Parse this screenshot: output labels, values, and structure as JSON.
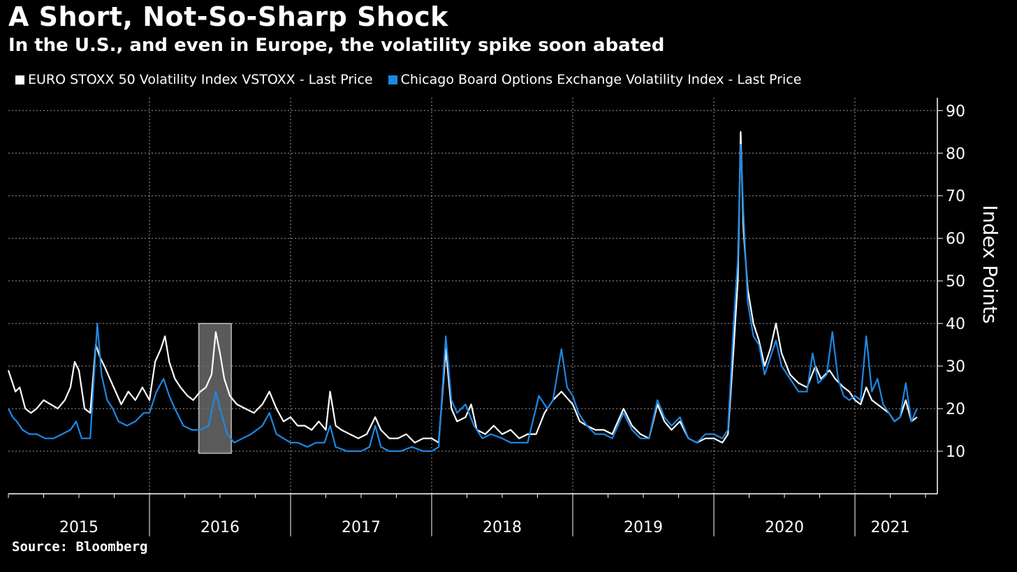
{
  "chart_data": {
    "type": "line",
    "title": "A Short, Not-So-Sharp Shock",
    "subtitle": "In the U.S., and even in Europe, the volatility spike soon abated",
    "ylabel": "Index Points",
    "xlabel": "",
    "source": "Source: Bloomberg",
    "ylim": [
      0,
      93
    ],
    "yticks": [
      10,
      20,
      30,
      40,
      50,
      60,
      70,
      80,
      90
    ],
    "x_range": [
      2015.0,
      2021.5
    ],
    "year_labels": [
      "2015",
      "2016",
      "2017",
      "2018",
      "2019",
      "2020",
      "2021"
    ],
    "highlight": {
      "x0": 2016.35,
      "x1": 2016.58,
      "y0": 9.5,
      "y1": 40,
      "label": ""
    },
    "series": [
      {
        "name": "EURO STOXX 50 Volatility Index VSTOXX - Last Price",
        "color": "#ffffff",
        "points": [
          [
            2015.0,
            29
          ],
          [
            2015.02,
            27
          ],
          [
            2015.05,
            24
          ],
          [
            2015.08,
            25
          ],
          [
            2015.12,
            20
          ],
          [
            2015.16,
            19
          ],
          [
            2015.2,
            20
          ],
          [
            2015.25,
            22
          ],
          [
            2015.3,
            21
          ],
          [
            2015.35,
            20
          ],
          [
            2015.4,
            22
          ],
          [
            2015.44,
            25
          ],
          [
            2015.47,
            31
          ],
          [
            2015.5,
            29
          ],
          [
            2015.54,
            20
          ],
          [
            2015.58,
            19
          ],
          [
            2015.62,
            35
          ],
          [
            2015.65,
            32
          ],
          [
            2015.68,
            30
          ],
          [
            2015.72,
            27
          ],
          [
            2015.76,
            24
          ],
          [
            2015.8,
            21
          ],
          [
            2015.85,
            24
          ],
          [
            2015.9,
            22
          ],
          [
            2015.95,
            25
          ],
          [
            2016.0,
            22
          ],
          [
            2016.04,
            31
          ],
          [
            2016.08,
            34
          ],
          [
            2016.11,
            37
          ],
          [
            2016.14,
            31
          ],
          [
            2016.18,
            27
          ],
          [
            2016.22,
            25
          ],
          [
            2016.27,
            23
          ],
          [
            2016.31,
            22
          ],
          [
            2016.36,
            24
          ],
          [
            2016.4,
            25
          ],
          [
            2016.44,
            28
          ],
          [
            2016.47,
            38
          ],
          [
            2016.5,
            33
          ],
          [
            2016.53,
            27
          ],
          [
            2016.57,
            23
          ],
          [
            2016.62,
            21
          ],
          [
            2016.68,
            20
          ],
          [
            2016.74,
            19
          ],
          [
            2016.8,
            21
          ],
          [
            2016.85,
            24
          ],
          [
            2016.9,
            20
          ],
          [
            2016.95,
            17
          ],
          [
            2017.0,
            18
          ],
          [
            2017.05,
            16
          ],
          [
            2017.1,
            16
          ],
          [
            2017.15,
            15
          ],
          [
            2017.2,
            17
          ],
          [
            2017.25,
            15
          ],
          [
            2017.28,
            24
          ],
          [
            2017.32,
            16
          ],
          [
            2017.36,
            15
          ],
          [
            2017.42,
            14
          ],
          [
            2017.48,
            13
          ],
          [
            2017.54,
            14
          ],
          [
            2017.6,
            18
          ],
          [
            2017.64,
            15
          ],
          [
            2017.7,
            13
          ],
          [
            2017.76,
            13
          ],
          [
            2017.82,
            14
          ],
          [
            2017.88,
            12
          ],
          [
            2017.94,
            13
          ],
          [
            2018.0,
            13
          ],
          [
            2018.05,
            12
          ],
          [
            2018.1,
            34
          ],
          [
            2018.14,
            20
          ],
          [
            2018.18,
            17
          ],
          [
            2018.24,
            18
          ],
          [
            2018.28,
            21
          ],
          [
            2018.32,
            15
          ],
          [
            2018.38,
            14
          ],
          [
            2018.44,
            16
          ],
          [
            2018.5,
            14
          ],
          [
            2018.56,
            15
          ],
          [
            2018.62,
            13
          ],
          [
            2018.68,
            14
          ],
          [
            2018.74,
            14
          ],
          [
            2018.8,
            19
          ],
          [
            2018.86,
            22
          ],
          [
            2018.92,
            24
          ],
          [
            2019.0,
            21
          ],
          [
            2019.05,
            17
          ],
          [
            2019.1,
            16
          ],
          [
            2019.16,
            15
          ],
          [
            2019.22,
            15
          ],
          [
            2019.28,
            14
          ],
          [
            2019.36,
            20
          ],
          [
            2019.42,
            16
          ],
          [
            2019.48,
            14
          ],
          [
            2019.54,
            13
          ],
          [
            2019.6,
            21
          ],
          [
            2019.65,
            17
          ],
          [
            2019.7,
            15
          ],
          [
            2019.76,
            17
          ],
          [
            2019.82,
            13
          ],
          [
            2019.88,
            12
          ],
          [
            2019.94,
            13
          ],
          [
            2020.0,
            13
          ],
          [
            2020.06,
            12
          ],
          [
            2020.1,
            14
          ],
          [
            2020.14,
            34
          ],
          [
            2020.17,
            50
          ],
          [
            2020.19,
            85
          ],
          [
            2020.21,
            62
          ],
          [
            2020.24,
            48
          ],
          [
            2020.28,
            40
          ],
          [
            2020.32,
            36
          ],
          [
            2020.36,
            30
          ],
          [
            2020.4,
            34
          ],
          [
            2020.44,
            40
          ],
          [
            2020.48,
            33
          ],
          [
            2020.54,
            28
          ],
          [
            2020.6,
            26
          ],
          [
            2020.66,
            25
          ],
          [
            2020.72,
            30
          ],
          [
            2020.76,
            27
          ],
          [
            2020.82,
            29
          ],
          [
            2020.86,
            27
          ],
          [
            2020.92,
            25
          ],
          [
            2020.96,
            24
          ],
          [
            2021.0,
            22
          ],
          [
            2021.04,
            21
          ],
          [
            2021.08,
            25
          ],
          [
            2021.12,
            22
          ],
          [
            2021.16,
            21
          ],
          [
            2021.2,
            20
          ],
          [
            2021.24,
            19
          ],
          [
            2021.28,
            17
          ],
          [
            2021.32,
            18
          ],
          [
            2021.36,
            22
          ],
          [
            2021.4,
            17
          ],
          [
            2021.44,
            18
          ]
        ]
      },
      {
        "name": "Chicago Board Options Exchange Volatility Index - Last Price",
        "color": "#1e88e5",
        "points": [
          [
            2015.0,
            20
          ],
          [
            2015.03,
            18
          ],
          [
            2015.06,
            17
          ],
          [
            2015.1,
            15
          ],
          [
            2015.15,
            14
          ],
          [
            2015.2,
            14
          ],
          [
            2015.26,
            13
          ],
          [
            2015.32,
            13
          ],
          [
            2015.38,
            14
          ],
          [
            2015.44,
            15
          ],
          [
            2015.48,
            17
          ],
          [
            2015.52,
            13
          ],
          [
            2015.58,
            13
          ],
          [
            2015.63,
            40
          ],
          [
            2015.66,
            28
          ],
          [
            2015.7,
            22
          ],
          [
            2015.74,
            20
          ],
          [
            2015.78,
            17
          ],
          [
            2015.84,
            16
          ],
          [
            2015.9,
            17
          ],
          [
            2015.96,
            19
          ],
          [
            2016.0,
            19
          ],
          [
            2016.05,
            24
          ],
          [
            2016.1,
            27
          ],
          [
            2016.14,
            23
          ],
          [
            2016.18,
            20
          ],
          [
            2016.24,
            16
          ],
          [
            2016.3,
            15
          ],
          [
            2016.36,
            15
          ],
          [
            2016.42,
            16
          ],
          [
            2016.47,
            24
          ],
          [
            2016.5,
            20
          ],
          [
            2016.55,
            14
          ],
          [
            2016.6,
            12
          ],
          [
            2016.66,
            13
          ],
          [
            2016.72,
            14
          ],
          [
            2016.8,
            16
          ],
          [
            2016.85,
            19
          ],
          [
            2016.9,
            14
          ],
          [
            2016.95,
            13
          ],
          [
            2017.0,
            12
          ],
          [
            2017.05,
            12
          ],
          [
            2017.12,
            11
          ],
          [
            2017.18,
            12
          ],
          [
            2017.24,
            12
          ],
          [
            2017.28,
            16
          ],
          [
            2017.32,
            11
          ],
          [
            2017.4,
            10
          ],
          [
            2017.5,
            10
          ],
          [
            2017.56,
            11
          ],
          [
            2017.6,
            16
          ],
          [
            2017.64,
            11
          ],
          [
            2017.7,
            10
          ],
          [
            2017.78,
            10
          ],
          [
            2017.86,
            11
          ],
          [
            2017.94,
            10
          ],
          [
            2018.0,
            10
          ],
          [
            2018.05,
            11
          ],
          [
            2018.1,
            37
          ],
          [
            2018.14,
            22
          ],
          [
            2018.18,
            19
          ],
          [
            2018.24,
            21
          ],
          [
            2018.3,
            16
          ],
          [
            2018.36,
            13
          ],
          [
            2018.42,
            14
          ],
          [
            2018.5,
            13
          ],
          [
            2018.56,
            12
          ],
          [
            2018.62,
            12
          ],
          [
            2018.68,
            12
          ],
          [
            2018.76,
            23
          ],
          [
            2018.82,
            20
          ],
          [
            2018.86,
            22
          ],
          [
            2018.92,
            34
          ],
          [
            2018.96,
            25
          ],
          [
            2019.0,
            23
          ],
          [
            2019.04,
            19
          ],
          [
            2019.1,
            16
          ],
          [
            2019.16,
            14
          ],
          [
            2019.22,
            14
          ],
          [
            2019.28,
            13
          ],
          [
            2019.36,
            19
          ],
          [
            2019.42,
            15
          ],
          [
            2019.48,
            13
          ],
          [
            2019.54,
            13
          ],
          [
            2019.6,
            22
          ],
          [
            2019.65,
            18
          ],
          [
            2019.7,
            16
          ],
          [
            2019.76,
            18
          ],
          [
            2019.82,
            13
          ],
          [
            2019.88,
            12
          ],
          [
            2019.94,
            14
          ],
          [
            2020.0,
            14
          ],
          [
            2020.06,
            13
          ],
          [
            2020.1,
            15
          ],
          [
            2020.14,
            40
          ],
          [
            2020.17,
            55
          ],
          [
            2020.19,
            82
          ],
          [
            2020.21,
            66
          ],
          [
            2020.24,
            45
          ],
          [
            2020.28,
            37
          ],
          [
            2020.32,
            35
          ],
          [
            2020.36,
            28
          ],
          [
            2020.4,
            32
          ],
          [
            2020.44,
            36
          ],
          [
            2020.48,
            30
          ],
          [
            2020.54,
            27
          ],
          [
            2020.6,
            24
          ],
          [
            2020.66,
            24
          ],
          [
            2020.7,
            33
          ],
          [
            2020.74,
            26
          ],
          [
            2020.8,
            28
          ],
          [
            2020.84,
            38
          ],
          [
            2020.88,
            27
          ],
          [
            2020.92,
            23
          ],
          [
            2020.96,
            22
          ],
          [
            2021.0,
            23
          ],
          [
            2021.04,
            22
          ],
          [
            2021.08,
            37
          ],
          [
            2021.12,
            24
          ],
          [
            2021.16,
            27
          ],
          [
            2021.2,
            21
          ],
          [
            2021.24,
            19
          ],
          [
            2021.28,
            17
          ],
          [
            2021.32,
            18
          ],
          [
            2021.36,
            26
          ],
          [
            2021.4,
            17
          ],
          [
            2021.44,
            20
          ]
        ]
      }
    ]
  }
}
